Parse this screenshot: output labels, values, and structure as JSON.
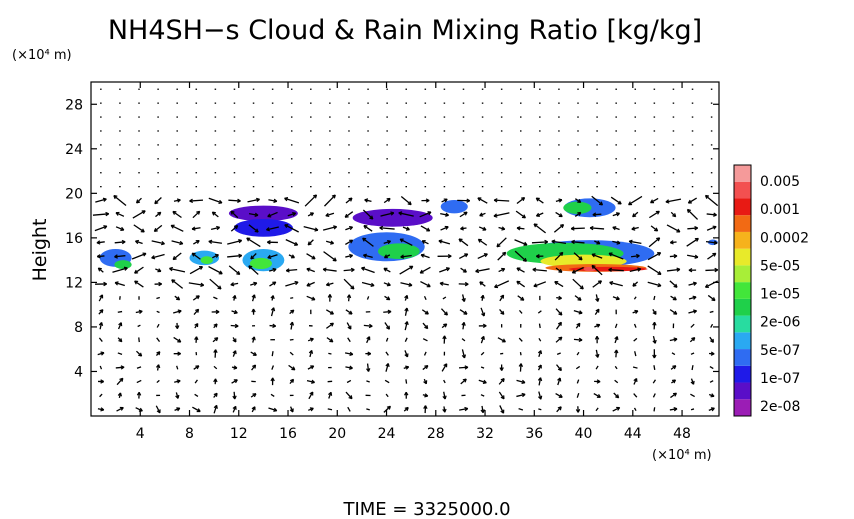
{
  "chart_data": {
    "type": "heatmap",
    "title": "NH4SH−s Cloud & Rain Mixing Ratio [kg/kg]",
    "ylabel": "Height",
    "x_unit": "(×10⁴ m)",
    "y_unit": "(×10⁴ m)",
    "footer": "TIME  =  3325000.0",
    "xlim": [
      0,
      51
    ],
    "ylim": [
      0,
      30
    ],
    "x_ticks": [
      4,
      8,
      12,
      16,
      20,
      24,
      28,
      32,
      36,
      40,
      44,
      48
    ],
    "y_ticks": [
      4,
      8,
      12,
      16,
      20,
      24,
      28
    ],
    "colorbar": {
      "labels": [
        "0.005",
        "0.001",
        "0.0002",
        "5e-05",
        "1e-05",
        "2e-06",
        "5e-07",
        "1e-07",
        "2e-08"
      ],
      "colors": [
        "#9b1db5",
        "#5a0ec8",
        "#1f1ae8",
        "#2f6cf2",
        "#2aa9f2",
        "#28dca0",
        "#1fd04a",
        "#42e63a",
        "#a8ee38",
        "#e8ea2a",
        "#f6b21c",
        "#f26a14",
        "#e81a14",
        "#f35050",
        "#f59a9a"
      ]
    },
    "overlay": "wind vector arrows",
    "series": [
      {
        "regions": [
          {
            "x": 2,
            "y": 14.2,
            "w": 2.6,
            "h": 1.6,
            "level": 3
          },
          {
            "x": 2.6,
            "y": 13.6,
            "w": 1.4,
            "h": 0.8,
            "level": 6
          },
          {
            "x": 9.2,
            "y": 14.2,
            "w": 2.4,
            "h": 1.3,
            "level": 4
          },
          {
            "x": 9.4,
            "y": 14.0,
            "w": 1.0,
            "h": 0.7,
            "level": 7
          },
          {
            "x": 14,
            "y": 18.2,
            "w": 5.6,
            "h": 1.4,
            "level": 1
          },
          {
            "x": 14,
            "y": 16.9,
            "w": 4.8,
            "h": 1.6,
            "level": 2
          },
          {
            "x": 14,
            "y": 14.0,
            "w": 3.4,
            "h": 2.0,
            "level": 4
          },
          {
            "x": 13.8,
            "y": 13.7,
            "w": 1.8,
            "h": 1.0,
            "level": 7
          },
          {
            "x": 24.5,
            "y": 17.8,
            "w": 6.5,
            "h": 1.6,
            "level": 1
          },
          {
            "x": 24,
            "y": 15.2,
            "w": 6.2,
            "h": 2.6,
            "level": 3
          },
          {
            "x": 25,
            "y": 14.8,
            "w": 3.4,
            "h": 1.4,
            "level": 6
          },
          {
            "x": 29.5,
            "y": 18.8,
            "w": 2.2,
            "h": 1.2,
            "level": 3
          },
          {
            "x": 40.5,
            "y": 18.7,
            "w": 4.2,
            "h": 1.7,
            "level": 3
          },
          {
            "x": 39.5,
            "y": 18.7,
            "w": 2.3,
            "h": 1.1,
            "level": 6
          },
          {
            "x": 40.5,
            "y": 14.6,
            "w": 10.5,
            "h": 2.4,
            "level": 3
          },
          {
            "x": 38.5,
            "y": 14.6,
            "w": 9.5,
            "h": 1.9,
            "level": 6
          },
          {
            "x": 40,
            "y": 13.9,
            "w": 7.0,
            "h": 1.2,
            "level": 9
          },
          {
            "x": 41,
            "y": 13.3,
            "w": 8.2,
            "h": 0.7,
            "level": 11
          },
          {
            "x": 42,
            "y": 13.2,
            "w": 6.4,
            "h": 0.4,
            "level": 12
          },
          {
            "x": 40.5,
            "y": 13.2,
            "w": 1.0,
            "h": 0.4,
            "level": 13
          },
          {
            "x": 50.5,
            "y": 15.6,
            "w": 0.8,
            "h": 0.5,
            "level": 3
          }
        ]
      }
    ]
  }
}
